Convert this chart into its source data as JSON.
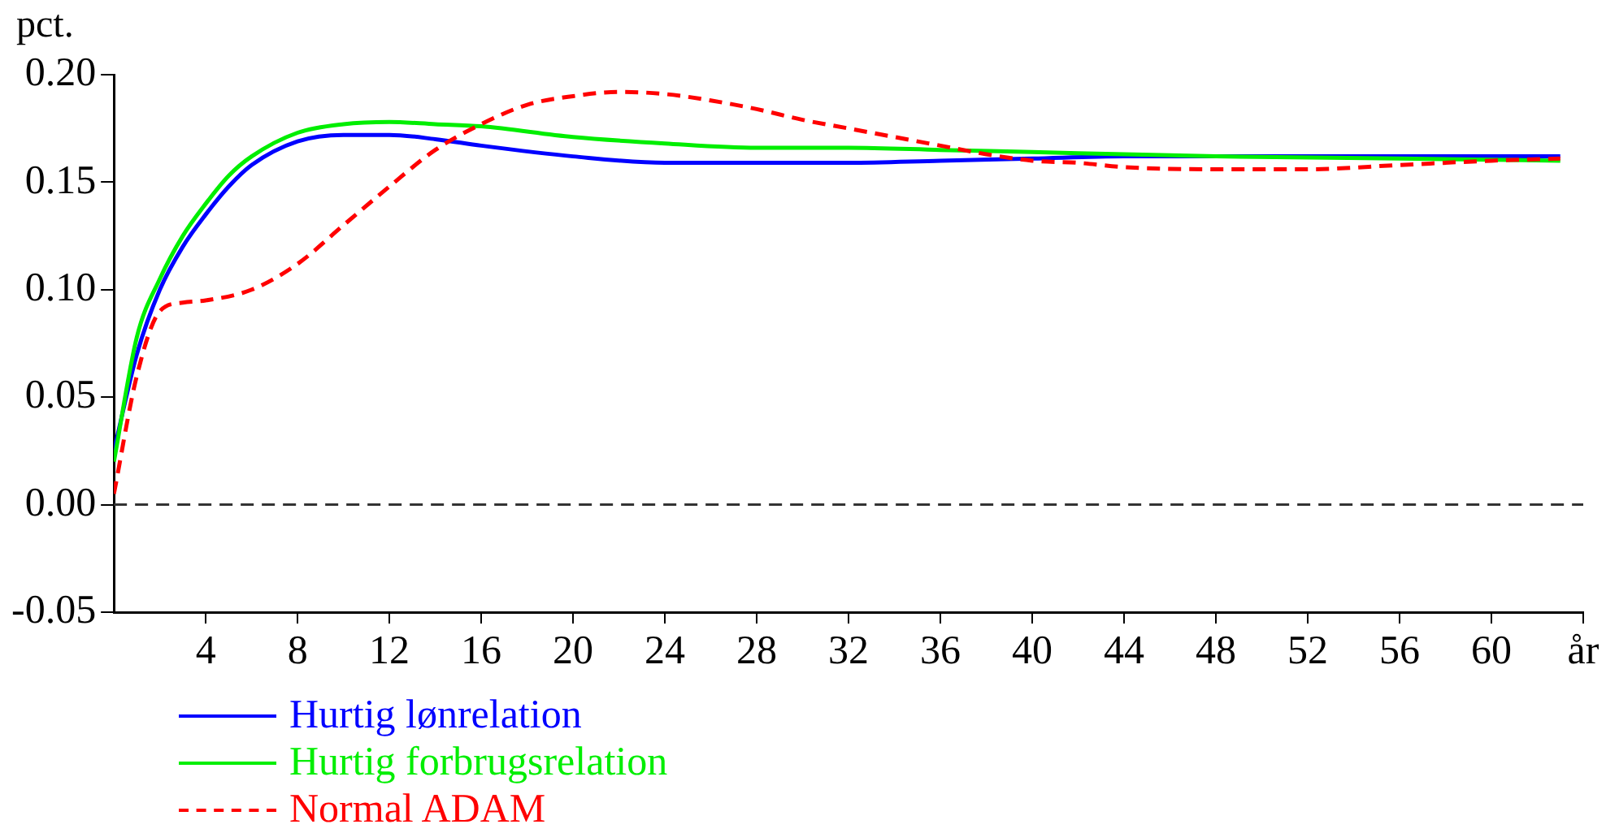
{
  "chart_data": {
    "type": "line",
    "ylabel": "pct.",
    "xlim": [
      0,
      64
    ],
    "xticks": [
      4,
      8,
      12,
      16,
      20,
      24,
      28,
      32,
      36,
      40,
      44,
      48,
      52,
      56,
      60,
      {
        "value": 64,
        "label": "år"
      }
    ],
    "ylim": [
      -0.05,
      0.2
    ],
    "yticks": [
      {
        "value": -0.05,
        "label": "-0.05"
      },
      {
        "value": 0,
        "label": "0.00"
      },
      {
        "value": 0.05,
        "label": "0.05"
      },
      {
        "value": 0.1,
        "label": "0.10"
      },
      {
        "value": 0.15,
        "label": "0.15"
      },
      {
        "value": 0.2,
        "label": "0.20"
      }
    ],
    "grid": false,
    "legend": "bottom",
    "marker": "none",
    "ref_lines": [
      {
        "axis": "y",
        "value": 0,
        "color": "#333333",
        "line_style": "dashed"
      }
    ],
    "series": [
      {
        "name": "Hurtig lønrelation",
        "color": "#0000ff",
        "line_style": "solid",
        "x": [
          0,
          1,
          2,
          3,
          4,
          5,
          6,
          8,
          10,
          12,
          14,
          16,
          20,
          24,
          28,
          32,
          36,
          40,
          44,
          63
        ],
        "values": [
          0.025,
          0.07,
          0.1,
          0.12,
          0.135,
          0.148,
          0.158,
          0.169,
          0.172,
          0.172,
          0.17,
          0.167,
          0.162,
          0.159,
          0.159,
          0.159,
          0.16,
          0.161,
          0.162,
          0.162
        ]
      },
      {
        "name": "Hurtig forbrugsrelation",
        "color": "#00ee00",
        "line_style": "solid",
        "x": [
          0,
          1,
          2,
          3,
          4,
          5,
          6,
          8,
          10,
          12,
          14,
          16,
          20,
          24,
          28,
          32,
          36,
          40,
          44,
          48,
          56,
          63
        ],
        "values": [
          0.02,
          0.078,
          0.105,
          0.125,
          0.14,
          0.153,
          0.162,
          0.173,
          0.177,
          0.178,
          0.177,
          0.176,
          0.171,
          0.168,
          0.166,
          0.166,
          0.165,
          0.164,
          0.163,
          0.162,
          0.161,
          0.16
        ]
      },
      {
        "name": "Normal ADAM",
        "color": "#ff0000",
        "line_style": "dashed",
        "x": [
          0,
          1,
          2,
          3,
          4,
          6,
          8,
          10,
          12,
          14,
          16,
          18,
          20,
          22,
          24,
          26,
          28,
          30,
          32,
          34,
          36,
          38,
          40,
          42,
          44,
          48,
          52,
          56,
          60,
          63
        ],
        "values": [
          0.005,
          0.06,
          0.09,
          0.094,
          0.095,
          0.1,
          0.112,
          0.13,
          0.148,
          0.165,
          0.177,
          0.186,
          0.19,
          0.192,
          0.191,
          0.188,
          0.184,
          0.179,
          0.175,
          0.171,
          0.167,
          0.163,
          0.16,
          0.159,
          0.157,
          0.156,
          0.156,
          0.158,
          0.16,
          0.161
        ]
      }
    ]
  }
}
